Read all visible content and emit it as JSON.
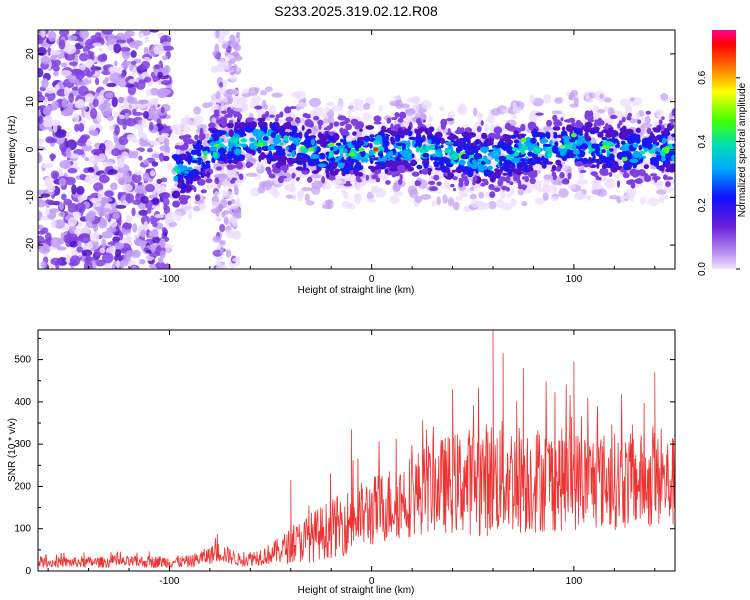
{
  "chart_data": [
    {
      "type": "heatmap",
      "title": "S233.2025.319.02.12.R08",
      "xlabel": "Height of straight line (km)",
      "ylabel": "Frequency (Hz)",
      "xlim": [
        -165,
        150
      ],
      "ylim": [
        -25,
        25
      ],
      "xticks": [
        -100,
        0,
        100
      ],
      "yticks": [
        -20,
        -10,
        0,
        10,
        20
      ],
      "colorbar": {
        "label": "Normalized spectral amplitude",
        "range": [
          0,
          0.75
        ],
        "ticks": [
          0.0,
          0.2,
          0.4,
          0.6
        ],
        "colormap": [
          "#e8d0ff",
          "#8a2be2",
          "#0000ff",
          "#00a0ff",
          "#00e0c0",
          "#00ff00",
          "#ffff00",
          "#ff8000",
          "#ff0000",
          "#ff0080"
        ]
      },
      "ridge_centerline": [
        {
          "x": -95,
          "y": -5
        },
        {
          "x": -85,
          "y": -2
        },
        {
          "x": -75,
          "y": 1
        },
        {
          "x": -55,
          "y": 2
        },
        {
          "x": -40,
          "y": 1
        },
        {
          "x": -25,
          "y": -1
        },
        {
          "x": -10,
          "y": -1
        },
        {
          "x": 0,
          "y": 0
        },
        {
          "x": 20,
          "y": 0
        },
        {
          "x": 40,
          "y": -1
        },
        {
          "x": 60,
          "y": -2
        },
        {
          "x": 80,
          "y": 0
        },
        {
          "x": 100,
          "y": 1
        },
        {
          "x": 120,
          "y": 0
        },
        {
          "x": 145,
          "y": 0
        }
      ],
      "peak": {
        "x": 2,
        "y": 0,
        "value": 0.75
      }
    },
    {
      "type": "line",
      "xlabel": "Height of straight line (km)",
      "ylabel": "SNR (10 * v/v)",
      "xlim": [
        -165,
        150
      ],
      "ylim": [
        0,
        570
      ],
      "xticks": [
        -100,
        0,
        100
      ],
      "yticks": [
        0,
        100,
        200,
        300,
        400,
        500
      ],
      "color": "#ee3333",
      "envelope": [
        {
          "x": -165,
          "mean": 20,
          "spread": 12
        },
        {
          "x": -90,
          "mean": 22,
          "spread": 15
        },
        {
          "x": -75,
          "mean": 45,
          "spread": 25
        },
        {
          "x": -65,
          "mean": 25,
          "spread": 15
        },
        {
          "x": -50,
          "mean": 40,
          "spread": 25
        },
        {
          "x": -30,
          "mean": 80,
          "spread": 60
        },
        {
          "x": -10,
          "mean": 120,
          "spread": 80
        },
        {
          "x": 10,
          "mean": 160,
          "spread": 90
        },
        {
          "x": 30,
          "mean": 200,
          "spread": 110
        },
        {
          "x": 60,
          "mean": 220,
          "spread": 140
        },
        {
          "x": 100,
          "mean": 215,
          "spread": 120
        },
        {
          "x": 150,
          "mean": 210,
          "spread": 110
        }
      ],
      "peaks": [
        {
          "x": -40,
          "y": 215
        },
        {
          "x": -10,
          "y": 335
        },
        {
          "x": 40,
          "y": 430
        },
        {
          "x": 60,
          "y": 570
        },
        {
          "x": 65,
          "y": 515
        },
        {
          "x": 75,
          "y": 480
        },
        {
          "x": 100,
          "y": 495
        },
        {
          "x": 140,
          "y": 470
        }
      ]
    }
  ]
}
